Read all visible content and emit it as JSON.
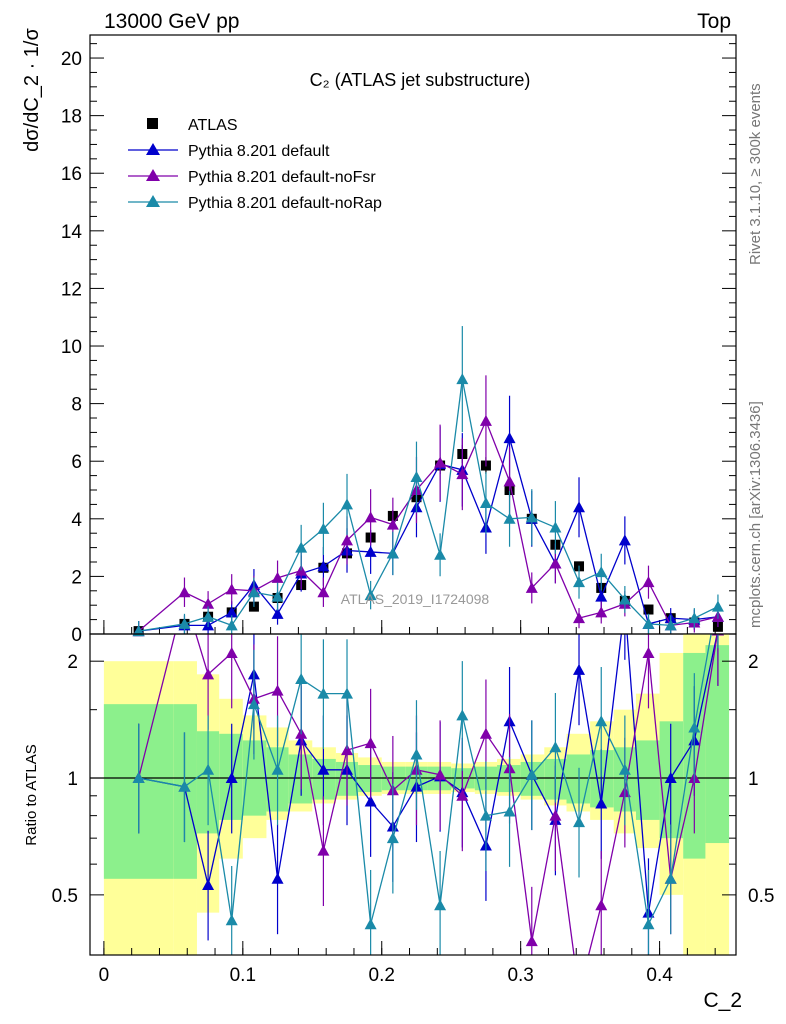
{
  "header": {
    "left": "13000 GeV pp",
    "right": "Top"
  },
  "side_labels": {
    "rivet": "Rivet 3.1.10, ≥ 300k events",
    "mcplots": "mcplots.cern.ch [arXiv:1306.3436]"
  },
  "watermark": "ATLAS_2019_I1724098",
  "colors": {
    "atlas": "#000000",
    "default": "#0000cc",
    "noFsr": "#8000aa",
    "noRap": "#1a8aa8",
    "band_inner": "#8cf08c",
    "band_outer": "#ffff99"
  },
  "chart_data": [
    {
      "type": "scatter",
      "title": "C₂ (ATLAS jet substructure)",
      "xlabel": "C_2",
      "ylabel": "dσ/dC_2 · 1/σ",
      "xlim": [
        -0.01,
        0.455
      ],
      "ylim": [
        0,
        20.8
      ],
      "yticks": [
        0,
        2,
        4,
        6,
        8,
        10,
        12,
        14,
        16,
        18,
        20
      ],
      "legend_position": "top-left",
      "x": [
        0.025,
        0.058,
        0.075,
        0.092,
        0.108,
        0.125,
        0.142,
        0.158,
        0.175,
        0.192,
        0.208,
        0.225,
        0.242,
        0.258,
        0.275,
        0.292,
        0.308,
        0.325,
        0.342,
        0.358,
        0.375,
        0.392,
        0.408,
        0.425,
        0.442
      ],
      "series": [
        {
          "name": "ATLAS",
          "marker": "square",
          "color": "#000000",
          "values": [
            0.1,
            0.35,
            0.6,
            0.75,
            0.95,
            1.25,
            1.7,
            2.3,
            2.8,
            3.35,
            4.1,
            4.75,
            5.85,
            6.25,
            5.85,
            5.0,
            4.0,
            3.1,
            2.35,
            1.6,
            1.15,
            0.85,
            0.55,
            0.4,
            0.25
          ]
        },
        {
          "name": "Pythia 8.201 default",
          "marker": "triangle",
          "color": "#0000cc",
          "values": [
            0.1,
            0.3,
            0.3,
            0.75,
            1.7,
            0.7,
            2.1,
            2.35,
            2.9,
            2.85,
            2.8,
            4.4,
            5.9,
            5.7,
            3.7,
            6.8,
            4.0,
            2.45,
            4.4,
            1.3,
            3.25,
            0.35,
            0.55,
            0.5,
            0.6
          ]
        },
        {
          "name": "Pythia 8.201 default-noFsr",
          "marker": "triangle",
          "color": "#8000aa",
          "values": [
            0.1,
            1.45,
            1.05,
            1.55,
            1.5,
            1.95,
            2.2,
            1.45,
            3.25,
            4.05,
            3.8,
            5.0,
            5.95,
            5.55,
            7.4,
            5.3,
            1.6,
            2.45,
            0.55,
            0.75,
            1.05,
            1.8,
            0.3,
            0.4,
            0.6
          ]
        },
        {
          "name": "Pythia 8.201 default-noRap",
          "marker": "triangle",
          "color": "#1a8aa8",
          "values": [
            0.1,
            0.35,
            0.6,
            0.3,
            1.45,
            1.3,
            3.0,
            3.65,
            4.5,
            1.35,
            2.8,
            5.45,
            2.75,
            8.85,
            4.55,
            4.0,
            4.05,
            3.7,
            1.8,
            2.15,
            1.2,
            0.35,
            0.3,
            0.55,
            0.95
          ]
        }
      ]
    },
    {
      "type": "line",
      "ylabel": "Ratio to ATLAS",
      "xlim": [
        -0.01,
        0.455
      ],
      "ylim": [
        0.35,
        2.35
      ],
      "ylog": true,
      "yticks": [
        0.5,
        1,
        2
      ],
      "xticks": [
        0,
        0.1,
        0.2,
        0.3,
        0.4
      ],
      "band_edges": [
        0,
        0.05,
        0.067,
        0.083,
        0.1,
        0.117,
        0.133,
        0.15,
        0.167,
        0.183,
        0.2,
        0.217,
        0.233,
        0.25,
        0.267,
        0.283,
        0.3,
        0.317,
        0.333,
        0.35,
        0.367,
        0.383,
        0.4,
        0.417,
        0.433,
        0.45
      ],
      "band_inner_low": [
        0.55,
        0.55,
        0.72,
        0.78,
        0.8,
        0.82,
        0.86,
        0.88,
        0.9,
        0.92,
        0.93,
        0.93,
        0.93,
        0.94,
        0.93,
        0.92,
        0.9,
        0.88,
        0.86,
        0.84,
        0.82,
        0.78,
        0.7,
        0.62,
        0.68
      ],
      "band_inner_high": [
        1.55,
        1.55,
        1.32,
        1.3,
        1.25,
        1.2,
        1.15,
        1.12,
        1.1,
        1.08,
        1.07,
        1.07,
        1.07,
        1.06,
        1.07,
        1.08,
        1.1,
        1.12,
        1.15,
        1.18,
        1.2,
        1.25,
        1.4,
        2.1,
        2.2
      ],
      "band_outer_low": [
        0.35,
        0.35,
        0.45,
        0.62,
        0.7,
        0.78,
        0.82,
        0.86,
        0.88,
        0.9,
        0.91,
        0.91,
        0.91,
        0.92,
        0.91,
        0.9,
        0.88,
        0.85,
        0.82,
        0.78,
        0.72,
        0.66,
        0.5,
        0.35,
        0.35
      ],
      "band_outer_high": [
        2.0,
        2.0,
        1.85,
        1.6,
        1.45,
        1.35,
        1.25,
        1.2,
        1.16,
        1.13,
        1.1,
        1.1,
        1.1,
        1.09,
        1.1,
        1.12,
        1.15,
        1.2,
        1.3,
        1.4,
        1.5,
        1.65,
        2.1,
        2.4,
        2.4
      ],
      "series": [
        {
          "name": "Pythia 8.201 default",
          "color": "#0000cc",
          "values": [
            1.0,
            0.95,
            0.53,
            1.0,
            1.85,
            0.55,
            1.25,
            1.05,
            1.05,
            0.87,
            0.75,
            0.95,
            1.01,
            0.92,
            0.67,
            1.4,
            1.02,
            0.78,
            1.9,
            0.86,
            2.8,
            0.45,
            1.0,
            1.25,
            2.4
          ]
        },
        {
          "name": "Pythia 8.201 default-noFsr",
          "color": "#8000aa",
          "values": [
            1.0,
            4.0,
            1.85,
            2.1,
            1.6,
            1.68,
            1.3,
            0.65,
            1.18,
            1.23,
            0.93,
            1.05,
            1.02,
            0.9,
            1.3,
            1.06,
            0.38,
            0.8,
            0.23,
            0.47,
            0.92,
            2.1,
            0.55,
            1.0,
            2.4
          ]
        },
        {
          "name": "Pythia 8.201 default-noRap",
          "color": "#1a8aa8",
          "values": [
            1.0,
            0.95,
            1.05,
            0.43,
            1.55,
            1.05,
            1.8,
            1.65,
            1.65,
            0.42,
            0.7,
            1.15,
            0.47,
            1.45,
            0.8,
            0.82,
            1.02,
            1.2,
            0.77,
            1.4,
            1.05,
            0.42,
            0.55,
            1.35,
            3.0
          ]
        }
      ]
    }
  ]
}
